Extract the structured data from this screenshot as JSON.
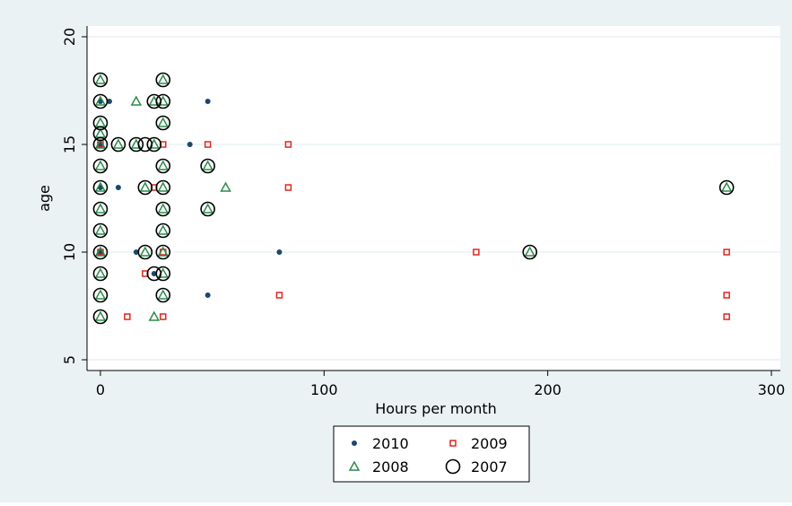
{
  "chart_data": {
    "type": "scatter",
    "x_label": "Hours per month",
    "y_label": "age",
    "xlim": [
      -6,
      304
    ],
    "ylim": [
      4.5,
      20.5
    ],
    "xticks": [
      0,
      100,
      200,
      300
    ],
    "yticks": [
      5,
      10,
      15,
      20
    ],
    "grid": true,
    "legend_position": "bottom",
    "series": [
      {
        "name": "2010",
        "marker": "dot",
        "color": "#1a476f",
        "x": [
          0,
          0,
          0,
          0,
          4,
          8,
          16,
          24,
          40,
          48,
          48,
          80
        ],
        "values": [
          17,
          15,
          13,
          10,
          17,
          13,
          10,
          9,
          15,
          17,
          8,
          10
        ]
      },
      {
        "name": "2009",
        "marker": "square",
        "color": "#e0271f",
        "x": [
          0,
          0,
          12,
          20,
          24,
          28,
          28,
          28,
          48,
          80,
          84,
          84,
          168,
          280,
          280,
          280
        ],
        "values": [
          15,
          10,
          7,
          9,
          13,
          15,
          10,
          7,
          15,
          8,
          15,
          13,
          10,
          10,
          8,
          7
        ]
      },
      {
        "name": "2008",
        "marker": "triangle",
        "color": "#2d8a4a",
        "x": [
          0,
          0,
          0,
          0,
          0,
          0,
          0,
          0,
          0,
          0,
          0,
          0,
          0,
          8,
          16,
          16,
          20,
          20,
          24,
          24,
          24,
          28,
          28,
          28,
          28,
          28,
          28,
          28,
          28,
          28,
          28,
          48,
          48,
          56,
          192,
          280
        ],
        "values": [
          7,
          8,
          9,
          10,
          11,
          12,
          13,
          14,
          15,
          15.5,
          16,
          17,
          18,
          15,
          17,
          15,
          13,
          10,
          17,
          15,
          7,
          18,
          17,
          16,
          14,
          13,
          12,
          11,
          10,
          9,
          8,
          14,
          12,
          13,
          10,
          13
        ]
      },
      {
        "name": "2007",
        "marker": "circle",
        "color": "#000000",
        "x": [
          0,
          0,
          0,
          0,
          0,
          0,
          0,
          0,
          0,
          0,
          0,
          0,
          0,
          8,
          16,
          20,
          20,
          20,
          24,
          24,
          24,
          28,
          28,
          28,
          28,
          28,
          28,
          28,
          28,
          28,
          28,
          48,
          48,
          192,
          280
        ],
        "values": [
          7,
          8,
          9,
          10,
          11,
          12,
          13,
          14,
          15,
          15.5,
          16,
          17,
          18,
          15,
          15,
          15,
          13,
          10,
          17,
          15,
          9,
          18,
          17,
          16,
          14,
          13,
          12,
          11,
          10,
          9,
          8,
          14,
          12,
          10,
          13
        ]
      }
    ]
  }
}
